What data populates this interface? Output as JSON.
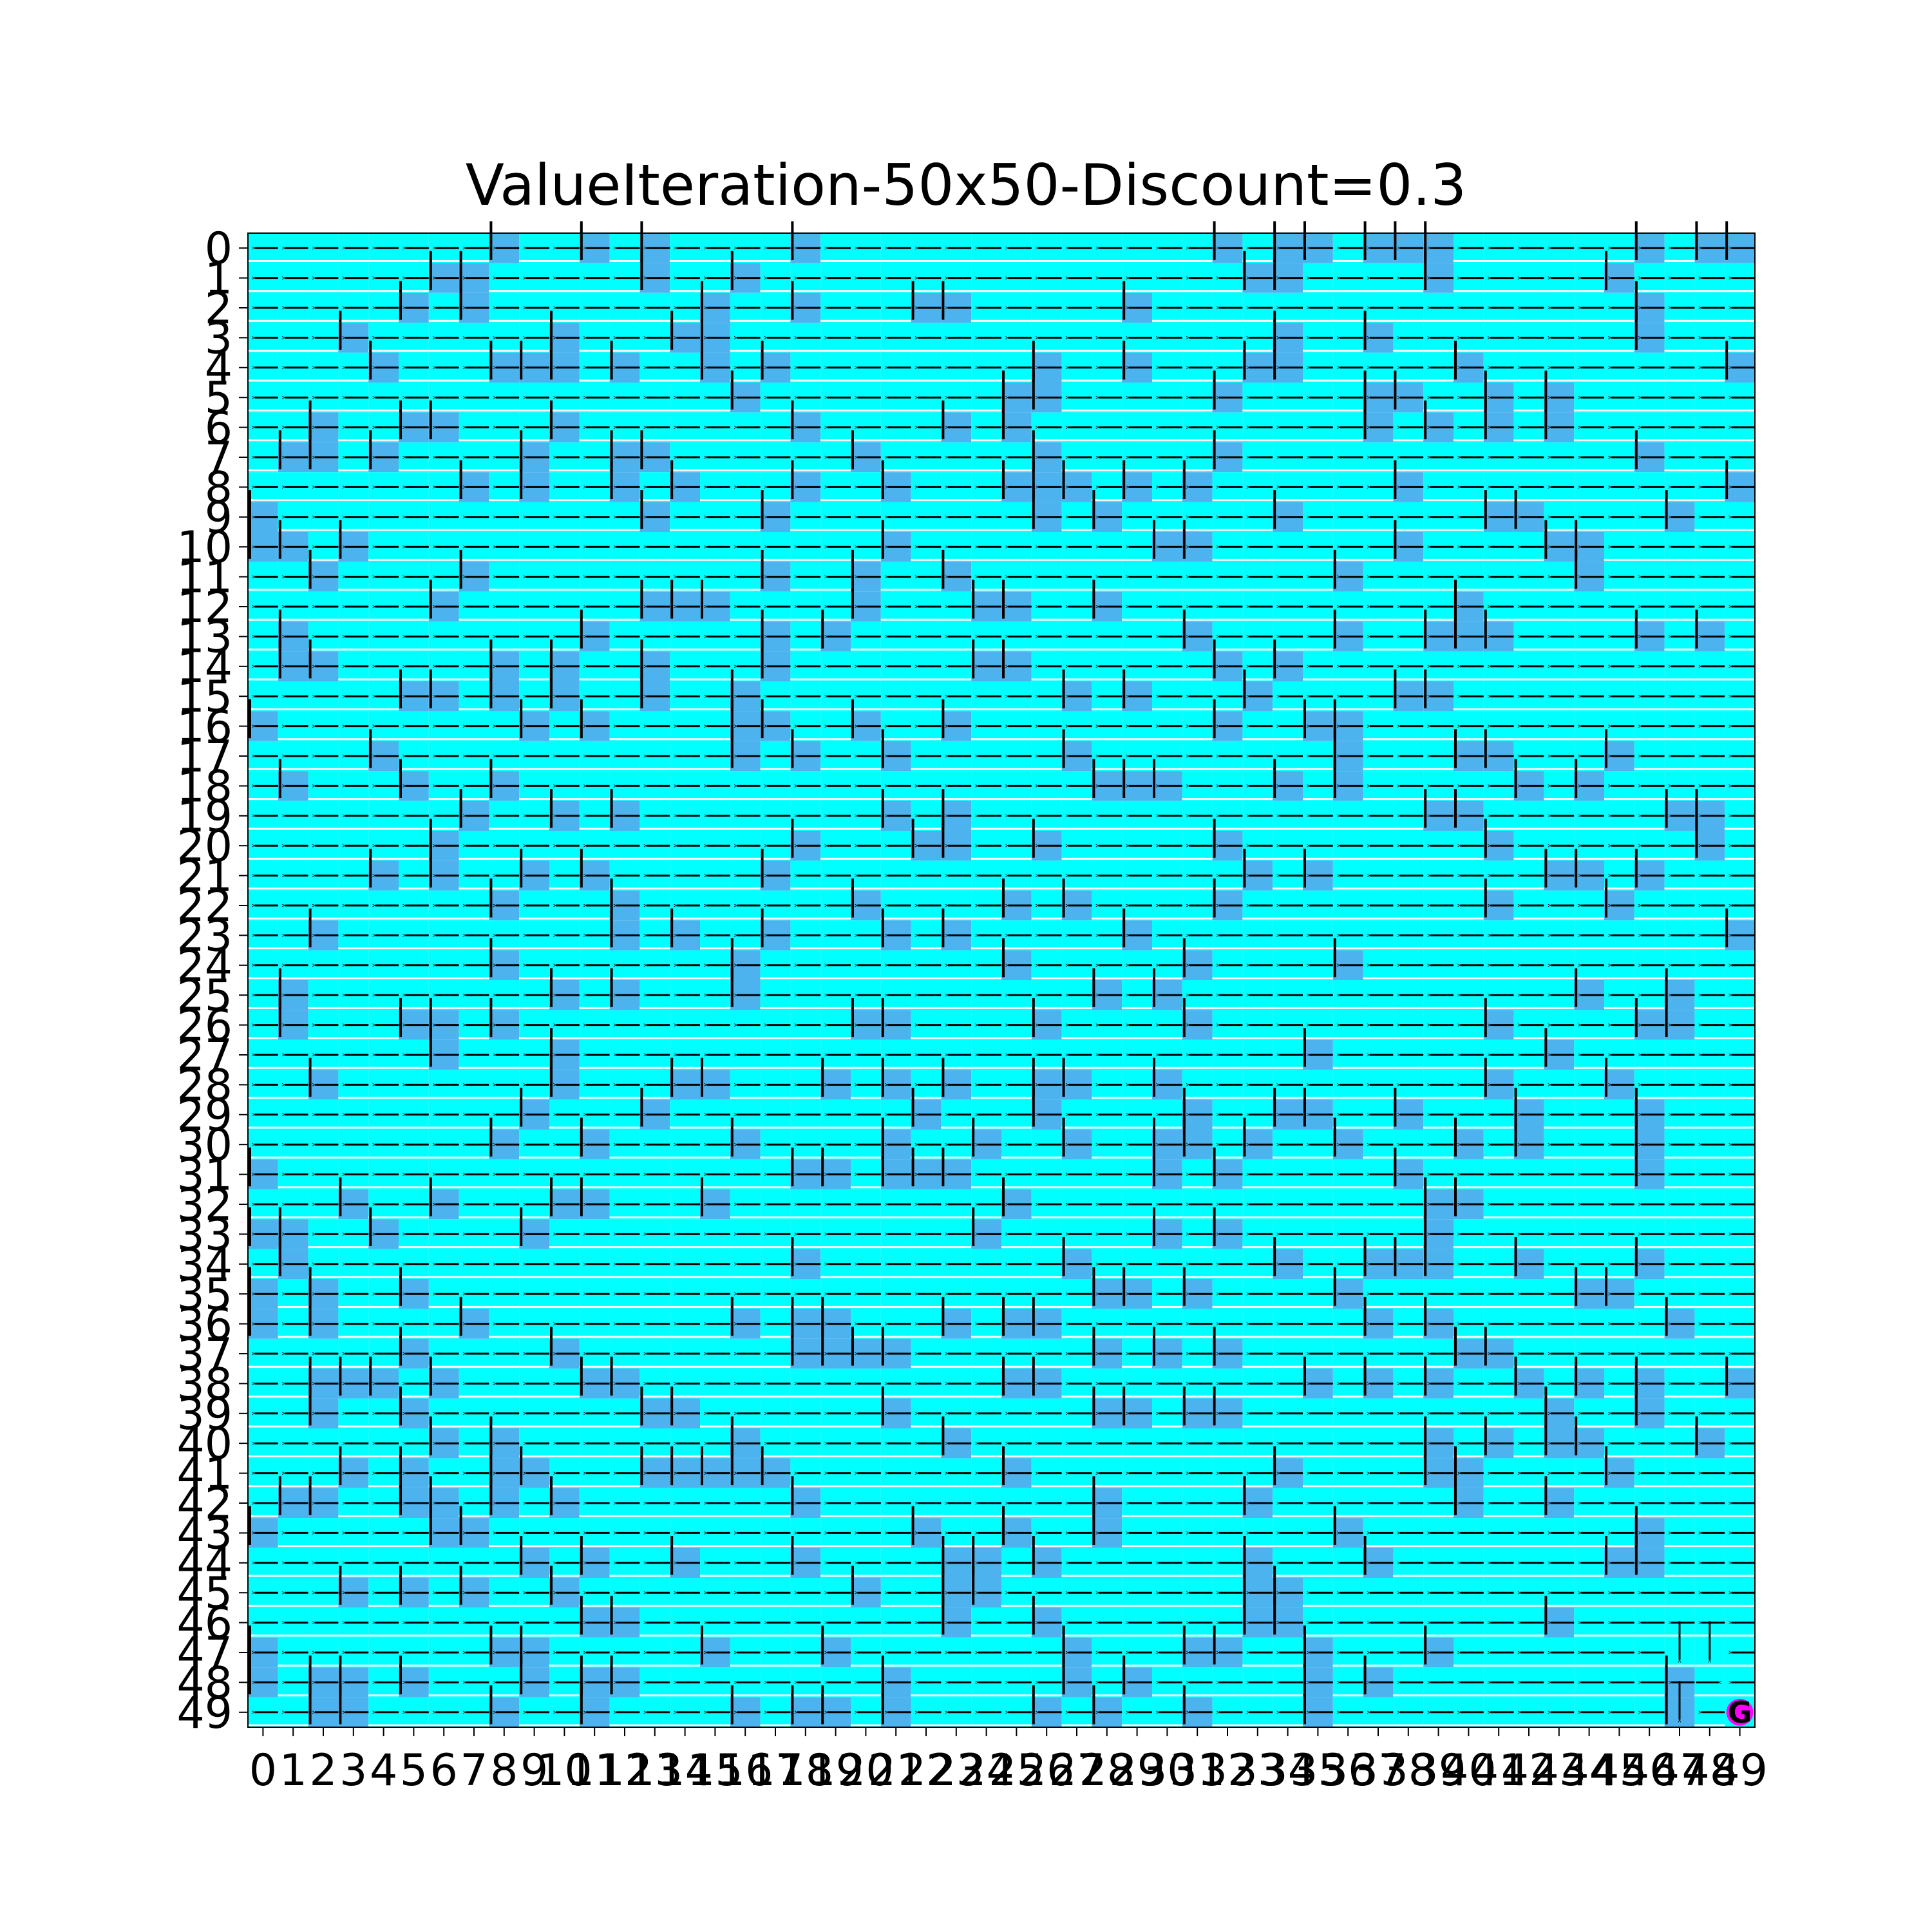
{
  "chart_data": {
    "type": "heatmap",
    "title": "ValueIteration-50x50-Discount=0.3",
    "xlabel": "",
    "ylabel": "",
    "rows": 50,
    "cols": 50,
    "x_ticks": [
      "0",
      "1",
      "2",
      "3",
      "4",
      "5",
      "6",
      "7",
      "8",
      "9",
      "10",
      "11",
      "12",
      "13",
      "14",
      "15",
      "16",
      "17",
      "18",
      "19",
      "20",
      "21",
      "22",
      "23",
      "24",
      "25",
      "26",
      "27",
      "28",
      "29",
      "30",
      "31",
      "32",
      "33",
      "34",
      "35",
      "36",
      "37",
      "38",
      "39",
      "40",
      "41",
      "42",
      "43",
      "44",
      "45",
      "46",
      "47",
      "48",
      "49"
    ],
    "y_ticks": [
      "0",
      "1",
      "2",
      "3",
      "4",
      "5",
      "6",
      "7",
      "8",
      "9",
      "10",
      "11",
      "12",
      "13",
      "14",
      "15",
      "16",
      "17",
      "18",
      "19",
      "20",
      "21",
      "22",
      "23",
      "24",
      "25",
      "26",
      "27",
      "28",
      "29",
      "30",
      "31",
      "32",
      "33",
      "34",
      "35",
      "36",
      "37",
      "38",
      "39",
      "40",
      "41",
      "42",
      "43",
      "44",
      "45",
      "46",
      "47",
      "48",
      "49"
    ],
    "colors": {
      "free_cell": "#00ffff",
      "wall_cell": "#4db3ee",
      "goal_cell": "#ff00ff",
      "arrow": "#000000",
      "wall_bar": "#000000"
    },
    "default_policy": "left",
    "special_arrows": [
      {
        "row": 47,
        "col": 47,
        "dir": "down"
      },
      {
        "row": 47,
        "col": 48,
        "dir": "down"
      },
      {
        "row": 48,
        "col": 48,
        "dir": "right"
      },
      {
        "row": 49,
        "col": 47,
        "dir": "down"
      }
    ],
    "goal": {
      "row": 49,
      "col": 49,
      "label": "G"
    },
    "walls": {
      "0": [
        8,
        11,
        13,
        18,
        32,
        34,
        35,
        37,
        38,
        39,
        46,
        48,
        49
      ],
      "1": [
        6,
        7,
        13,
        16,
        33,
        34,
        39,
        45
      ],
      "2": [
        5,
        7,
        15,
        18,
        22,
        23,
        29,
        46
      ],
      "3": [
        3,
        10,
        14,
        15,
        34,
        37,
        46
      ],
      "4": [
        4,
        8,
        9,
        10,
        12,
        15,
        17,
        26,
        29,
        33,
        34,
        40,
        49
      ],
      "5": [
        16,
        25,
        26,
        32,
        37,
        38,
        41,
        43
      ],
      "6": [
        2,
        5,
        6,
        10,
        18,
        23,
        25,
        37,
        39,
        41,
        43
      ],
      "7": [
        1,
        2,
        4,
        9,
        12,
        13,
        20,
        26,
        32,
        46
      ],
      "8": [
        7,
        9,
        12,
        14,
        18,
        21,
        25,
        26,
        27,
        29,
        31,
        38,
        49
      ],
      "9": [
        0,
        13,
        17,
        26,
        28,
        34,
        41,
        42,
        47
      ],
      "10": [
        0,
        1,
        3,
        21,
        30,
        31,
        38,
        43,
        44
      ],
      "11": [
        2,
        7,
        17,
        20,
        23,
        36,
        44
      ],
      "12": [
        6,
        13,
        14,
        15,
        20,
        24,
        25,
        28,
        40
      ],
      "13": [
        1,
        11,
        17,
        19,
        31,
        36,
        39,
        40,
        41,
        46,
        48
      ],
      "14": [
        1,
        2,
        8,
        10,
        13,
        17,
        24,
        25,
        32,
        34
      ],
      "15": [
        5,
        6,
        8,
        10,
        13,
        16,
        27,
        29,
        33,
        38,
        39
      ],
      "16": [
        0,
        9,
        11,
        16,
        17,
        20,
        23,
        32,
        35,
        36
      ],
      "17": [
        4,
        16,
        18,
        21,
        27,
        36,
        40,
        41,
        45
      ],
      "18": [
        1,
        5,
        8,
        28,
        29,
        30,
        34,
        36,
        42,
        44
      ],
      "19": [
        7,
        10,
        12,
        21,
        23,
        39,
        40,
        47,
        48
      ],
      "20": [
        6,
        18,
        22,
        23,
        26,
        32,
        41,
        48
      ],
      "21": [
        4,
        6,
        9,
        11,
        17,
        33,
        35,
        43,
        44,
        46
      ],
      "22": [
        8,
        12,
        20,
        25,
        27,
        32,
        41,
        45
      ],
      "23": [
        2,
        12,
        14,
        17,
        21,
        23,
        29,
        49
      ],
      "24": [
        8,
        16,
        25,
        31,
        36
      ],
      "25": [
        1,
        10,
        12,
        16,
        28,
        30,
        44,
        47
      ],
      "26": [
        1,
        5,
        6,
        8,
        20,
        21,
        26,
        31,
        41,
        46,
        47
      ],
      "27": [
        6,
        10,
        35,
        43
      ],
      "28": [
        2,
        10,
        14,
        15,
        19,
        21,
        23,
        26,
        27,
        30,
        41,
        45
      ],
      "29": [
        9,
        13,
        22,
        26,
        31,
        34,
        35,
        38,
        42,
        46
      ],
      "30": [
        8,
        11,
        16,
        21,
        24,
        27,
        30,
        31,
        33,
        36,
        40,
        42,
        46
      ],
      "31": [
        0,
        18,
        19,
        21,
        22,
        23,
        30,
        32,
        38,
        46
      ],
      "32": [
        3,
        6,
        10,
        11,
        15,
        25,
        39,
        40
      ],
      "33": [
        0,
        1,
        4,
        9,
        24,
        30,
        32,
        39
      ],
      "34": [
        1,
        18,
        27,
        34,
        37,
        38,
        39,
        42,
        46
      ],
      "35": [
        0,
        2,
        5,
        28,
        29,
        31,
        36,
        44,
        45
      ],
      "36": [
        0,
        2,
        7,
        16,
        18,
        19,
        23,
        25,
        26,
        37,
        39,
        47
      ],
      "37": [
        5,
        10,
        18,
        19,
        20,
        21,
        28,
        30,
        32,
        40,
        41
      ],
      "38": [
        2,
        3,
        4,
        6,
        11,
        12,
        25,
        26,
        35,
        37,
        39,
        42,
        44,
        46,
        49
      ],
      "39": [
        2,
        5,
        13,
        14,
        21,
        28,
        29,
        31,
        32,
        43,
        46
      ],
      "40": [
        6,
        8,
        16,
        23,
        39,
        41,
        43,
        44,
        48
      ],
      "41": [
        3,
        5,
        8,
        9,
        13,
        14,
        15,
        16,
        17,
        25,
        34,
        39,
        40,
        45
      ],
      "42": [
        1,
        2,
        5,
        6,
        8,
        10,
        18,
        28,
        33,
        40,
        43
      ],
      "43": [
        0,
        6,
        7,
        22,
        25,
        28,
        36,
        46
      ],
      "44": [
        9,
        11,
        14,
        18,
        23,
        24,
        26,
        33,
        37,
        45,
        46
      ],
      "45": [
        3,
        5,
        7,
        10,
        20,
        23,
        24,
        33,
        34
      ],
      "46": [
        11,
        12,
        23,
        26,
        33,
        34,
        43
      ],
      "47": [
        0,
        8,
        9,
        15,
        19,
        27,
        31,
        32,
        35,
        39
      ],
      "48": [
        0,
        2,
        3,
        5,
        9,
        11,
        12,
        21,
        27,
        29,
        35,
        37,
        47
      ],
      "49": [
        2,
        3,
        8,
        11,
        16,
        18,
        19,
        21,
        26,
        28,
        31,
        35,
        47
      ]
    }
  }
}
